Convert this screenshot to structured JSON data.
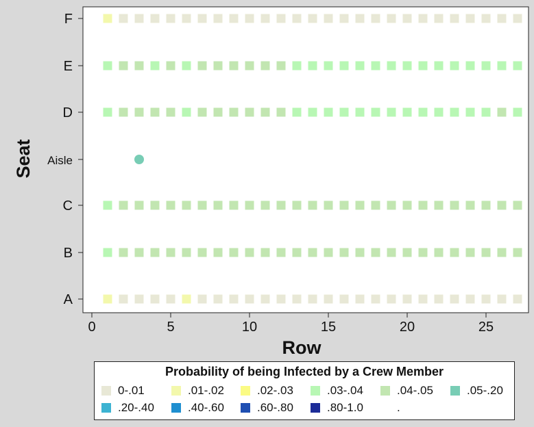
{
  "chart_data": {
    "type": "heatmap",
    "xlabel": "Row",
    "ylabel": "Seat",
    "xlim": [
      -0.5,
      27.5
    ],
    "x_ticks": [
      0,
      5,
      10,
      15,
      20,
      25
    ],
    "seats": [
      "A",
      "B",
      "C",
      "Aisle",
      "D",
      "E",
      "F"
    ],
    "grid": false,
    "rows": [
      1,
      2,
      3,
      4,
      5,
      6,
      7,
      8,
      9,
      10,
      11,
      12,
      13,
      14,
      15,
      16,
      17,
      18,
      19,
      20,
      21,
      22,
      23,
      24,
      25,
      26,
      27
    ],
    "cells": {
      "F": [
        "0.01-0.02",
        "0-0.01",
        "0-0.01",
        "0-0.01",
        "0-0.01",
        "0-0.01",
        "0-0.01",
        "0-0.01",
        "0-0.01",
        "0-0.01",
        "0-0.01",
        "0-0.01",
        "0-0.01",
        "0-0.01",
        "0-0.01",
        "0-0.01",
        "0-0.01",
        "0-0.01",
        "0-0.01",
        "0-0.01",
        "0-0.01",
        "0-0.01",
        "0-0.01",
        "0-0.01",
        "0-0.01",
        "0-0.01",
        "0-0.01"
      ],
      "E": [
        "0.03-0.04",
        "0.04-0.05",
        "0.04-0.05",
        "0.03-0.04",
        "0.04-0.05",
        "0.03-0.04",
        "0.04-0.05",
        "0.04-0.05",
        "0.04-0.05",
        "0.04-0.05",
        "0.04-0.05",
        "0.04-0.05",
        "0.03-0.04",
        "0.03-0.04",
        "0.03-0.04",
        "0.03-0.04",
        "0.03-0.04",
        "0.03-0.04",
        "0.03-0.04",
        "0.03-0.04",
        "0.03-0.04",
        "0.03-0.04",
        "0.03-0.04",
        "0.03-0.04",
        "0.03-0.04",
        "0.03-0.04",
        "0.03-0.04"
      ],
      "D": [
        "0.03-0.04",
        "0.04-0.05",
        "0.04-0.05",
        "0.04-0.05",
        "0.04-0.05",
        "0.03-0.04",
        "0.04-0.05",
        "0.04-0.05",
        "0.04-0.05",
        "0.04-0.05",
        "0.04-0.05",
        "0.04-0.05",
        "0.03-0.04",
        "0.03-0.04",
        "0.03-0.04",
        "0.03-0.04",
        "0.03-0.04",
        "0.03-0.04",
        "0.03-0.04",
        "0.03-0.04",
        "0.03-0.04",
        "0.03-0.04",
        "0.03-0.04",
        "0.03-0.04",
        "0.03-0.04",
        "0.04-0.05",
        "0.03-0.04"
      ],
      "C": [
        "0.03-0.04",
        "0.04-0.05",
        "0.04-0.05",
        "0.04-0.05",
        "0.04-0.05",
        "0.04-0.05",
        "0.04-0.05",
        "0.04-0.05",
        "0.04-0.05",
        "0.04-0.05",
        "0.04-0.05",
        "0.04-0.05",
        "0.04-0.05",
        "0.04-0.05",
        "0.04-0.05",
        "0.04-0.05",
        "0.04-0.05",
        "0.04-0.05",
        "0.04-0.05",
        "0.04-0.05",
        "0.04-0.05",
        "0.04-0.05",
        "0.04-0.05",
        "0.04-0.05",
        "0.04-0.05",
        "0.04-0.05",
        "0.04-0.05"
      ],
      "B": [
        "0.03-0.04",
        "0.04-0.05",
        "0.04-0.05",
        "0.04-0.05",
        "0.04-0.05",
        "0.04-0.05",
        "0.04-0.05",
        "0.04-0.05",
        "0.04-0.05",
        "0.04-0.05",
        "0.04-0.05",
        "0.04-0.05",
        "0.04-0.05",
        "0.04-0.05",
        "0.04-0.05",
        "0.04-0.05",
        "0.04-0.05",
        "0.04-0.05",
        "0.04-0.05",
        "0.04-0.05",
        "0.04-0.05",
        "0.04-0.05",
        "0.04-0.05",
        "0.04-0.05",
        "0.04-0.05",
        "0.04-0.05",
        "0.04-0.05"
      ],
      "A": [
        "0.01-0.02",
        "0-0.01",
        "0-0.01",
        "0-0.01",
        "0-0.01",
        "0.01-0.02",
        "0-0.01",
        "0-0.01",
        "0-0.01",
        "0-0.01",
        "0-0.01",
        "0-0.01",
        "0-0.01",
        "0-0.01",
        "0-0.01",
        "0-0.01",
        "0-0.01",
        "0-0.01",
        "0-0.01",
        "0-0.01",
        "0-0.01",
        "0-0.01",
        "0-0.01",
        "0-0.01",
        "0-0.01",
        "0-0.01",
        "0-0.01"
      ]
    },
    "crew_member": {
      "row": 3,
      "seat": "Aisle",
      "category": "0.05-0.20"
    },
    "legend_title": "Probability of being Infected by a Crew Member",
    "legend_position": "bottom",
    "legend": [
      {
        "key": "0-0.01",
        "label": "0-.01",
        "color": "#e8e8d6"
      },
      {
        "key": "0.01-0.02",
        "label": ".01-.02",
        "color": "#f3f8ac"
      },
      {
        "key": "0.02-0.03",
        "label": ".02-.03",
        "color": "#fbfb84"
      },
      {
        "key": "0.03-0.04",
        "label": ".03-.04",
        "color": "#b8f7b4"
      },
      {
        "key": "0.04-0.05",
        "label": ".04-.05",
        "color": "#c2e6b1"
      },
      {
        "key": "0.05-0.20",
        "label": ".05-.20",
        "color": "#78cdb5"
      },
      {
        "key": "0.20-0.40",
        "label": ".20-.40",
        "color": "#3db3d2"
      },
      {
        "key": "0.40-0.60",
        "label": ".40-.60",
        "color": "#1f8fd0"
      },
      {
        "key": "0.60-0.80",
        "label": ".60-.80",
        "color": "#1f4fb2"
      },
      {
        "key": "0.80-1.0",
        "label": ".80-1.0",
        "color": "#1c2c98"
      },
      {
        "key": "missing",
        "label": ".",
        "color": "#ffffff"
      }
    ]
  }
}
